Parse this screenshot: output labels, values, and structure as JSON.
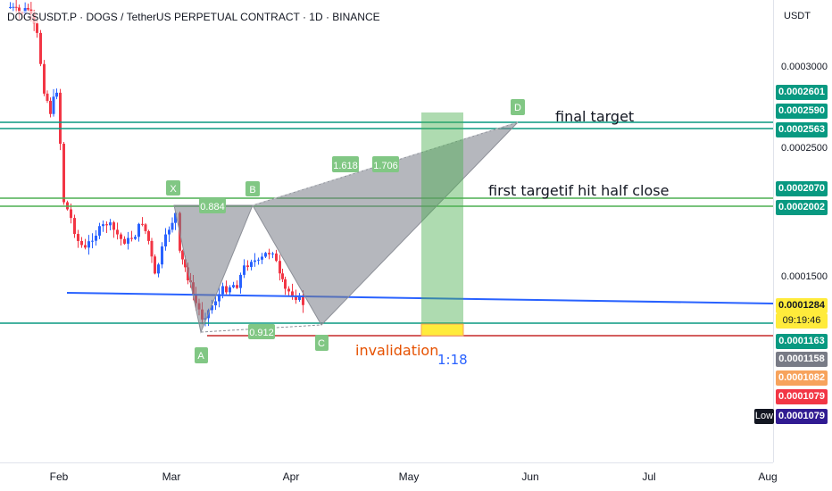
{
  "header": {
    "title": "DOGSUSDT.P · DOGS / TetherUS PERPETUAL CONTRACT · 1D · BINANCE",
    "currency": "USDT"
  },
  "chart_data": {
    "type": "candlestick",
    "x_axis_labels": [
      "Feb",
      "Mar",
      "Apr",
      "May",
      "Jun",
      "Jul",
      "Aug"
    ],
    "price_axis_ticks": [
      "0.0003000",
      "0.0002500",
      "0.0001500"
    ],
    "price_tags": [
      {
        "label": "0.0002601",
        "price": 0.0002601,
        "color": "#089981"
      },
      {
        "label": "0.0002590",
        "price": 0.000259,
        "color": "#089981"
      },
      {
        "label": "0.0002563",
        "price": 0.0002563,
        "color": "#089981"
      },
      {
        "label": "0.0002070",
        "price": 0.000207,
        "color": "#089981"
      },
      {
        "label": "0.0002002",
        "price": 0.0002002,
        "color": "#089981"
      },
      {
        "label": "0.0001284",
        "price": 0.0001284,
        "color": "#ffeb3b"
      },
      {
        "label": "09:19:46",
        "color": "#ffeb3b"
      },
      {
        "label": "0.0001163",
        "price": 0.0001163,
        "color": "#089981"
      },
      {
        "label": "0.0001158",
        "price": 0.0001158,
        "color": "#787b86"
      },
      {
        "label": "0.0001082",
        "price": 0.0001082,
        "color": "#f7a35c"
      },
      {
        "label": "0.0001079",
        "price": 0.0001079,
        "color": "#f23645"
      },
      {
        "label": "0.0001079",
        "price": 0.0001079,
        "color": "#311b92"
      }
    ],
    "low_label": "Low",
    "harmonic_points": [
      {
        "label": "X",
        "price": 0.000207
      },
      {
        "label": "A",
        "price": 0.000115
      },
      {
        "label": "B",
        "price": 0.0002
      },
      {
        "label": "C",
        "price": 0.000117
      },
      {
        "label": "D",
        "price": 0.00026
      }
    ],
    "ratio_labels": [
      "0.884",
      "0.912",
      "1.618",
      "1.706"
    ],
    "annotations": {
      "final_target": "final target",
      "first_target": "first target",
      "half_close": "if hit half close",
      "invalidation": "invalidation",
      "risk_reward": "1:18"
    },
    "colors": {
      "up": "#2962ff",
      "down": "#f23645",
      "level": "#089981",
      "trend": "#2962ff",
      "invalid": "#c62828"
    }
  }
}
